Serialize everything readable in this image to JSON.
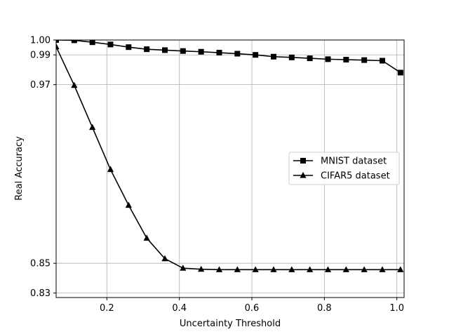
{
  "chart_data": {
    "type": "line",
    "title": "",
    "xlabel": "Uncertainty Threshold",
    "ylabel": "Real Accuracy",
    "xlim": [
      0.06,
      1.02
    ],
    "ylim": [
      0.827,
      1.0
    ],
    "xticks": [
      0.2,
      0.4,
      0.6,
      0.8,
      1.0
    ],
    "xtick_labels": [
      "0.2",
      "0.4",
      "0.6",
      "0.8",
      "1.0"
    ],
    "yticks": [
      0.83,
      0.85,
      0.97,
      0.99,
      1.0
    ],
    "ytick_labels": [
      "0.83",
      "0.85",
      "0.97",
      "0.99",
      "1.00"
    ],
    "grid": true,
    "legend_position": "center-right",
    "x": [
      0.06,
      0.11,
      0.16,
      0.21,
      0.26,
      0.31,
      0.36,
      0.41,
      0.46,
      0.51,
      0.56,
      0.61,
      0.66,
      0.71,
      0.76,
      0.81,
      0.86,
      0.91,
      0.96,
      1.01
    ],
    "series": [
      {
        "name": "MNIST dataset",
        "marker": "square",
        "color": "#000000",
        "values": [
          1.0,
          0.9998,
          0.9985,
          0.997,
          0.9952,
          0.9938,
          0.9932,
          0.9926,
          0.9921,
          0.9915,
          0.9908,
          0.99,
          0.9888,
          0.9883,
          0.9877,
          0.9871,
          0.9868,
          0.9865,
          0.9861,
          0.9781
        ]
      },
      {
        "name": "CIFAR5 dataset",
        "marker": "triangle",
        "color": "#000000",
        "values": [
          0.9955,
          0.9695,
          0.9413,
          0.913,
          0.889,
          0.8669,
          0.8531,
          0.8467,
          0.846,
          0.8457,
          0.8457,
          0.8457,
          0.8457,
          0.8457,
          0.8457,
          0.8457,
          0.8457,
          0.8457,
          0.8457,
          0.8457
        ]
      }
    ]
  }
}
